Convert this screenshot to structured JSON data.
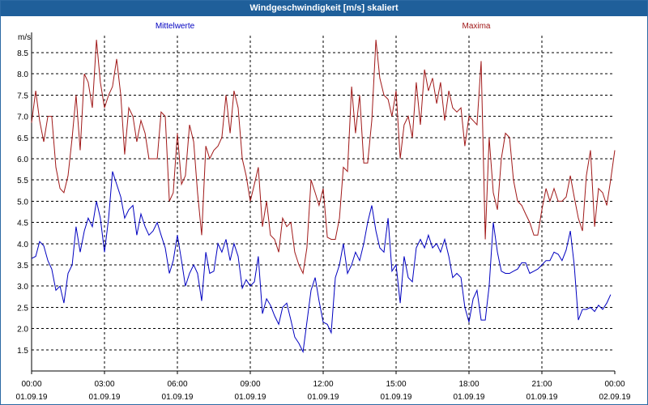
{
  "window": {
    "title": "Windgeschwindigkeit [m/s] skaliert"
  },
  "colors": {
    "titlebar": "#1f5f9a",
    "mean_series": "#0000c0",
    "max_series": "#a01818",
    "grid": "#000000"
  },
  "chart_data": {
    "type": "line",
    "title": "Windgeschwindigkeit [m/s] skaliert",
    "ylabel": "m/s",
    "xlabel": "",
    "ylim": [
      1.0,
      8.9
    ],
    "xlim": [
      0,
      24
    ],
    "y_ticks": [
      "1.5",
      "2.0",
      "2.5",
      "3.0",
      "3.5",
      "4.0",
      "4.5",
      "5.0",
      "5.5",
      "6.0",
      "6.5",
      "7.0",
      "7.5",
      "8.0",
      "8.5"
    ],
    "x_ticks": [
      {
        "time": "00:00",
        "date": "01.09.19"
      },
      {
        "time": "03:00",
        "date": "01.09.19"
      },
      {
        "time": "06:00",
        "date": "01.09.19"
      },
      {
        "time": "09:00",
        "date": "01.09.19"
      },
      {
        "time": "12:00",
        "date": "01.09.19"
      },
      {
        "time": "15:00",
        "date": "01.09.19"
      },
      {
        "time": "18:00",
        "date": "01.09.19"
      },
      {
        "time": "21:00",
        "date": "01.09.19"
      },
      {
        "time": "00:00",
        "date": "02.09.19"
      }
    ],
    "grid": true,
    "legend_position": "top",
    "series": [
      {
        "name": "Mittelwerte",
        "color": "#0000c0",
        "points": [
          [
            0.0,
            3.65
          ],
          [
            0.17,
            3.7
          ],
          [
            0.33,
            4.05
          ],
          [
            0.5,
            3.95
          ],
          [
            0.67,
            3.6
          ],
          [
            0.83,
            3.4
          ],
          [
            1.0,
            2.9
          ],
          [
            1.17,
            3.0
          ],
          [
            1.33,
            2.6
          ],
          [
            1.5,
            3.3
          ],
          [
            1.67,
            3.5
          ],
          [
            1.83,
            4.4
          ],
          [
            2.0,
            3.8
          ],
          [
            2.17,
            4.3
          ],
          [
            2.33,
            4.6
          ],
          [
            2.5,
            4.4
          ],
          [
            2.67,
            5.0
          ],
          [
            2.83,
            4.6
          ],
          [
            3.0,
            3.8
          ],
          [
            3.17,
            4.6
          ],
          [
            3.33,
            5.7
          ],
          [
            3.5,
            5.4
          ],
          [
            3.67,
            5.1
          ],
          [
            3.83,
            4.6
          ],
          [
            4.0,
            4.8
          ],
          [
            4.17,
            4.9
          ],
          [
            4.33,
            4.2
          ],
          [
            4.5,
            4.7
          ],
          [
            4.67,
            4.4
          ],
          [
            4.83,
            4.2
          ],
          [
            5.0,
            4.3
          ],
          [
            5.17,
            4.5
          ],
          [
            5.33,
            4.2
          ],
          [
            5.5,
            3.9
          ],
          [
            5.67,
            3.3
          ],
          [
            5.83,
            3.6
          ],
          [
            6.0,
            4.2
          ],
          [
            6.17,
            3.6
          ],
          [
            6.33,
            3.0
          ],
          [
            6.5,
            3.3
          ],
          [
            6.67,
            3.5
          ],
          [
            6.83,
            3.3
          ],
          [
            7.0,
            2.65
          ],
          [
            7.17,
            3.8
          ],
          [
            7.33,
            3.3
          ],
          [
            7.5,
            3.35
          ],
          [
            7.67,
            4.0
          ],
          [
            7.83,
            3.8
          ],
          [
            8.0,
            4.1
          ],
          [
            8.17,
            3.6
          ],
          [
            8.33,
            4.0
          ],
          [
            8.5,
            3.7
          ],
          [
            8.67,
            2.95
          ],
          [
            8.83,
            3.15
          ],
          [
            9.0,
            3.0
          ],
          [
            9.17,
            3.1
          ],
          [
            9.33,
            3.7
          ],
          [
            9.5,
            2.35
          ],
          [
            9.67,
            2.7
          ],
          [
            9.83,
            2.55
          ],
          [
            10.0,
            2.3
          ],
          [
            10.17,
            2.1
          ],
          [
            10.33,
            2.5
          ],
          [
            10.5,
            2.6
          ],
          [
            10.67,
            2.2
          ],
          [
            10.83,
            1.8
          ],
          [
            11.0,
            1.65
          ],
          [
            11.17,
            1.45
          ],
          [
            11.33,
            2.15
          ],
          [
            11.5,
            2.9
          ],
          [
            11.67,
            3.2
          ],
          [
            11.83,
            2.65
          ],
          [
            12.0,
            2.15
          ],
          [
            12.17,
            2.1
          ],
          [
            12.33,
            1.9
          ],
          [
            12.5,
            3.2
          ],
          [
            12.67,
            3.5
          ],
          [
            12.83,
            4.0
          ],
          [
            13.0,
            3.3
          ],
          [
            13.17,
            3.5
          ],
          [
            13.33,
            3.8
          ],
          [
            13.5,
            3.6
          ],
          [
            13.67,
            4.0
          ],
          [
            13.83,
            4.5
          ],
          [
            14.0,
            4.9
          ],
          [
            14.17,
            4.3
          ],
          [
            14.33,
            3.9
          ],
          [
            14.5,
            3.8
          ],
          [
            14.67,
            4.6
          ],
          [
            14.83,
            3.35
          ],
          [
            15.0,
            3.5
          ],
          [
            15.17,
            2.6
          ],
          [
            15.33,
            3.7
          ],
          [
            15.5,
            3.2
          ],
          [
            15.67,
            3.1
          ],
          [
            15.83,
            3.9
          ],
          [
            16.0,
            4.1
          ],
          [
            16.17,
            3.9
          ],
          [
            16.33,
            4.2
          ],
          [
            16.5,
            3.9
          ],
          [
            16.67,
            4.0
          ],
          [
            16.83,
            3.8
          ],
          [
            17.0,
            4.1
          ],
          [
            17.17,
            3.7
          ],
          [
            17.33,
            3.2
          ],
          [
            17.5,
            3.3
          ],
          [
            17.67,
            3.2
          ],
          [
            17.83,
            2.5
          ],
          [
            18.0,
            2.15
          ],
          [
            18.17,
            2.7
          ],
          [
            18.33,
            2.9
          ],
          [
            18.5,
            2.2
          ],
          [
            18.67,
            2.2
          ],
          [
            18.83,
            3.0
          ],
          [
            19.0,
            4.5
          ],
          [
            19.17,
            3.8
          ],
          [
            19.33,
            3.35
          ],
          [
            19.5,
            3.3
          ],
          [
            19.67,
            3.3
          ],
          [
            19.83,
            3.35
          ],
          [
            20.0,
            3.4
          ],
          [
            20.17,
            3.55
          ],
          [
            20.33,
            3.55
          ],
          [
            20.5,
            3.3
          ],
          [
            20.67,
            3.35
          ],
          [
            20.83,
            3.4
          ],
          [
            21.0,
            3.5
          ],
          [
            21.17,
            3.6
          ],
          [
            21.33,
            3.6
          ],
          [
            21.5,
            3.8
          ],
          [
            21.67,
            3.75
          ],
          [
            21.83,
            3.6
          ],
          [
            22.0,
            3.85
          ],
          [
            22.17,
            4.3
          ],
          [
            22.33,
            3.5
          ],
          [
            22.5,
            2.2
          ],
          [
            22.67,
            2.45
          ],
          [
            22.83,
            2.45
          ],
          [
            23.0,
            2.5
          ],
          [
            23.17,
            2.4
          ],
          [
            23.33,
            2.55
          ],
          [
            23.5,
            2.45
          ],
          [
            23.67,
            2.6
          ],
          [
            23.83,
            2.8
          ]
        ]
      },
      {
        "name": "Maxima",
        "color": "#a01818",
        "points": [
          [
            0.0,
            6.85
          ],
          [
            0.17,
            7.6
          ],
          [
            0.33,
            6.9
          ],
          [
            0.5,
            6.4
          ],
          [
            0.67,
            7.0
          ],
          [
            0.83,
            7.0
          ],
          [
            1.0,
            5.8
          ],
          [
            1.17,
            5.3
          ],
          [
            1.33,
            5.2
          ],
          [
            1.5,
            5.6
          ],
          [
            1.67,
            6.5
          ],
          [
            1.83,
            7.5
          ],
          [
            2.0,
            6.2
          ],
          [
            2.17,
            8.0
          ],
          [
            2.33,
            7.8
          ],
          [
            2.5,
            7.2
          ],
          [
            2.67,
            8.8
          ],
          [
            2.83,
            7.8
          ],
          [
            3.0,
            7.2
          ],
          [
            3.17,
            7.5
          ],
          [
            3.33,
            7.7
          ],
          [
            3.5,
            8.35
          ],
          [
            3.67,
            7.5
          ],
          [
            3.83,
            6.1
          ],
          [
            4.0,
            7.2
          ],
          [
            4.17,
            7.0
          ],
          [
            4.33,
            6.4
          ],
          [
            4.5,
            6.9
          ],
          [
            4.67,
            6.6
          ],
          [
            4.83,
            6.0
          ],
          [
            5.0,
            6.0
          ],
          [
            5.17,
            6.0
          ],
          [
            5.33,
            7.1
          ],
          [
            5.5,
            7.0
          ],
          [
            5.67,
            5.0
          ],
          [
            5.83,
            5.2
          ],
          [
            6.0,
            6.6
          ],
          [
            6.17,
            5.4
          ],
          [
            6.33,
            5.6
          ],
          [
            6.5,
            6.8
          ],
          [
            6.67,
            6.4
          ],
          [
            6.83,
            5.2
          ],
          [
            7.0,
            4.2
          ],
          [
            7.17,
            6.3
          ],
          [
            7.33,
            6.0
          ],
          [
            7.5,
            6.2
          ],
          [
            7.67,
            6.3
          ],
          [
            7.83,
            6.5
          ],
          [
            8.0,
            7.5
          ],
          [
            8.17,
            6.6
          ],
          [
            8.33,
            7.6
          ],
          [
            8.5,
            7.2
          ],
          [
            8.67,
            6.0
          ],
          [
            8.83,
            5.6
          ],
          [
            9.0,
            5.0
          ],
          [
            9.17,
            5.4
          ],
          [
            9.33,
            5.8
          ],
          [
            9.5,
            4.4
          ],
          [
            9.67,
            5.0
          ],
          [
            9.83,
            4.2
          ],
          [
            10.0,
            4.1
          ],
          [
            10.17,
            3.8
          ],
          [
            10.33,
            4.6
          ],
          [
            10.5,
            4.4
          ],
          [
            10.67,
            4.5
          ],
          [
            10.83,
            3.8
          ],
          [
            11.0,
            3.5
          ],
          [
            11.17,
            3.3
          ],
          [
            11.33,
            3.9
          ],
          [
            11.5,
            5.5
          ],
          [
            11.67,
            5.2
          ],
          [
            11.83,
            4.9
          ],
          [
            12.0,
            5.3
          ],
          [
            12.17,
            4.15
          ],
          [
            12.33,
            4.1
          ],
          [
            12.5,
            4.1
          ],
          [
            12.67,
            4.6
          ],
          [
            12.83,
            5.8
          ],
          [
            13.0,
            5.7
          ],
          [
            13.17,
            7.7
          ],
          [
            13.33,
            6.6
          ],
          [
            13.5,
            7.5
          ],
          [
            13.67,
            5.9
          ],
          [
            13.83,
            5.9
          ],
          [
            14.0,
            6.9
          ],
          [
            14.17,
            8.8
          ],
          [
            14.33,
            7.9
          ],
          [
            14.5,
            7.5
          ],
          [
            14.67,
            7.4
          ],
          [
            14.83,
            7.0
          ],
          [
            15.0,
            7.6
          ],
          [
            15.17,
            6.0
          ],
          [
            15.33,
            6.8
          ],
          [
            15.5,
            7.0
          ],
          [
            15.67,
            6.5
          ],
          [
            15.83,
            7.8
          ],
          [
            16.0,
            6.8
          ],
          [
            16.17,
            8.1
          ],
          [
            16.33,
            7.6
          ],
          [
            16.5,
            7.9
          ],
          [
            16.67,
            7.3
          ],
          [
            16.83,
            7.8
          ],
          [
            17.0,
            6.9
          ],
          [
            17.17,
            7.6
          ],
          [
            17.33,
            7.2
          ],
          [
            17.5,
            7.1
          ],
          [
            17.67,
            7.2
          ],
          [
            17.83,
            6.3
          ],
          [
            18.0,
            7.0
          ],
          [
            18.17,
            6.9
          ],
          [
            18.33,
            6.8
          ],
          [
            18.5,
            8.3
          ],
          [
            18.67,
            4.1
          ],
          [
            18.83,
            6.5
          ],
          [
            19.0,
            5.2
          ],
          [
            19.17,
            4.8
          ],
          [
            19.33,
            6.0
          ],
          [
            19.5,
            6.6
          ],
          [
            19.67,
            6.5
          ],
          [
            19.83,
            5.5
          ],
          [
            20.0,
            5.0
          ],
          [
            20.17,
            4.9
          ],
          [
            20.33,
            4.7
          ],
          [
            20.5,
            4.5
          ],
          [
            20.67,
            4.2
          ],
          [
            20.83,
            4.2
          ],
          [
            21.0,
            4.8
          ],
          [
            21.17,
            5.3
          ],
          [
            21.33,
            5.0
          ],
          [
            21.5,
            5.3
          ],
          [
            21.67,
            5.0
          ],
          [
            21.83,
            5.0
          ],
          [
            22.0,
            5.1
          ],
          [
            22.17,
            5.6
          ],
          [
            22.33,
            5.1
          ],
          [
            22.5,
            4.6
          ],
          [
            22.67,
            4.3
          ],
          [
            22.83,
            5.6
          ],
          [
            23.0,
            6.2
          ],
          [
            23.17,
            4.4
          ],
          [
            23.33,
            5.3
          ],
          [
            23.5,
            5.2
          ],
          [
            23.67,
            4.9
          ],
          [
            23.83,
            5.5
          ],
          [
            24.0,
            6.2
          ]
        ]
      }
    ]
  }
}
